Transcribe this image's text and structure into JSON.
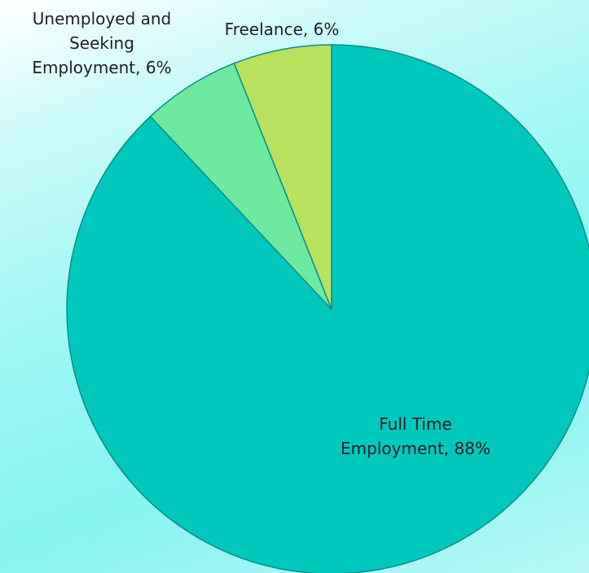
{
  "chart_data": {
    "type": "pie",
    "categories": [
      "Full Time Employment",
      "Unemployed and Seeking Employment",
      "Freelance"
    ],
    "values": [
      88,
      6,
      6
    ],
    "value_suffix": "%",
    "colors": [
      "#00c8bd",
      "#6ee9a0",
      "#b9e160"
    ],
    "edge_color": "#0a8f88",
    "labels": [
      [
        "Full Time",
        "Employment, 88%"
      ],
      [
        "Unemployed and",
        "Seeking",
        "Employment, 6%"
      ],
      [
        "Freelance, 6%"
      ]
    ],
    "start_angle": "12 o'clock",
    "direction": "clockwise",
    "legend": "none"
  }
}
